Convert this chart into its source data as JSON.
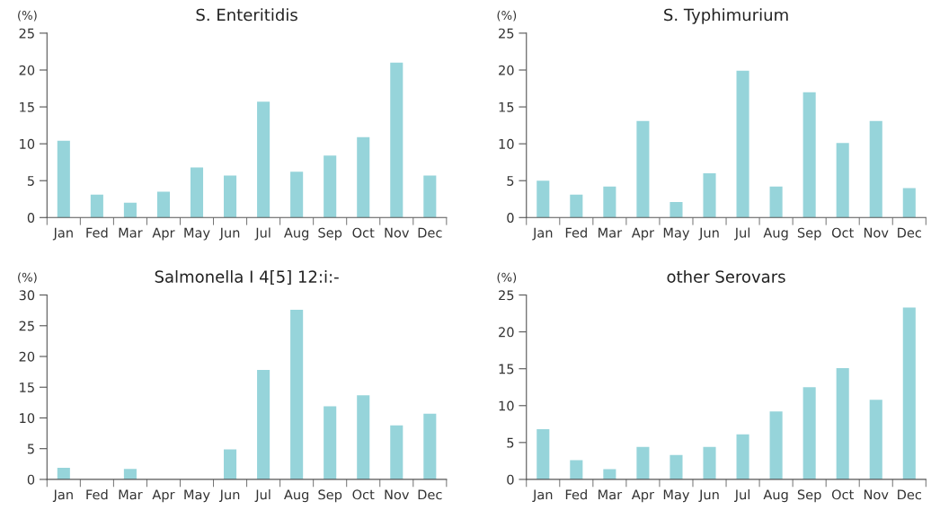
{
  "chart_data": [
    {
      "type": "bar",
      "title": "S. Enteritidis",
      "ylabel": "(%)",
      "categories": [
        "Jan",
        "Fed",
        "Mar",
        "Apr",
        "May",
        "Jun",
        "Jul",
        "Aug",
        "Sep",
        "Oct",
        "Nov",
        "Dec"
      ],
      "values": [
        10.4,
        3.1,
        2.0,
        3.5,
        6.8,
        5.7,
        15.7,
        6.2,
        8.4,
        10.9,
        21.0,
        5.7
      ],
      "color": "#96d4da",
      "ylim": [
        0,
        25
      ],
      "yticks": [
        0,
        5,
        10,
        15,
        20,
        25
      ],
      "grid": false,
      "legend": false
    },
    {
      "type": "bar",
      "title": "S. Typhimurium",
      "ylabel": "(%)",
      "categories": [
        "Jan",
        "Fed",
        "Mar",
        "Apr",
        "May",
        "Jun",
        "Jul",
        "Aug",
        "Sep",
        "Oct",
        "Nov",
        "Dec"
      ],
      "values": [
        5.0,
        3.1,
        4.2,
        13.1,
        2.1,
        6.0,
        19.9,
        4.2,
        17.0,
        10.1,
        13.1,
        4.0
      ],
      "color": "#96d4da",
      "ylim": [
        0,
        25
      ],
      "yticks": [
        0,
        5,
        10,
        15,
        20,
        25
      ],
      "grid": false,
      "legend": false
    },
    {
      "type": "bar",
      "title": "Salmonella I 4[5] 12:i:-",
      "ylabel": "(%)",
      "categories": [
        "Jan",
        "Fed",
        "Mar",
        "Apr",
        "May",
        "Jun",
        "Jul",
        "Aug",
        "Sep",
        "Oct",
        "Nov",
        "Dec"
      ],
      "values": [
        1.9,
        0,
        1.7,
        0,
        0,
        4.9,
        17.8,
        27.6,
        11.9,
        13.7,
        8.8,
        10.7
      ],
      "color": "#96d4da",
      "ylim": [
        0,
        30
      ],
      "yticks": [
        0,
        5,
        10,
        15,
        20,
        25,
        30
      ],
      "grid": false,
      "legend": false
    },
    {
      "type": "bar",
      "title": "other Serovars",
      "ylabel": "(%)",
      "categories": [
        "Jan",
        "Fed",
        "Mar",
        "Apr",
        "May",
        "Jun",
        "Jul",
        "Aug",
        "Sep",
        "Oct",
        "Nov",
        "Dec"
      ],
      "values": [
        6.8,
        2.6,
        1.4,
        4.4,
        3.3,
        4.4,
        6.1,
        9.2,
        12.5,
        15.1,
        10.8,
        23.3
      ],
      "color": "#96d4da",
      "ylim": [
        0,
        25
      ],
      "yticks": [
        0,
        5,
        10,
        15,
        20,
        25
      ],
      "grid": false,
      "legend": false
    }
  ]
}
